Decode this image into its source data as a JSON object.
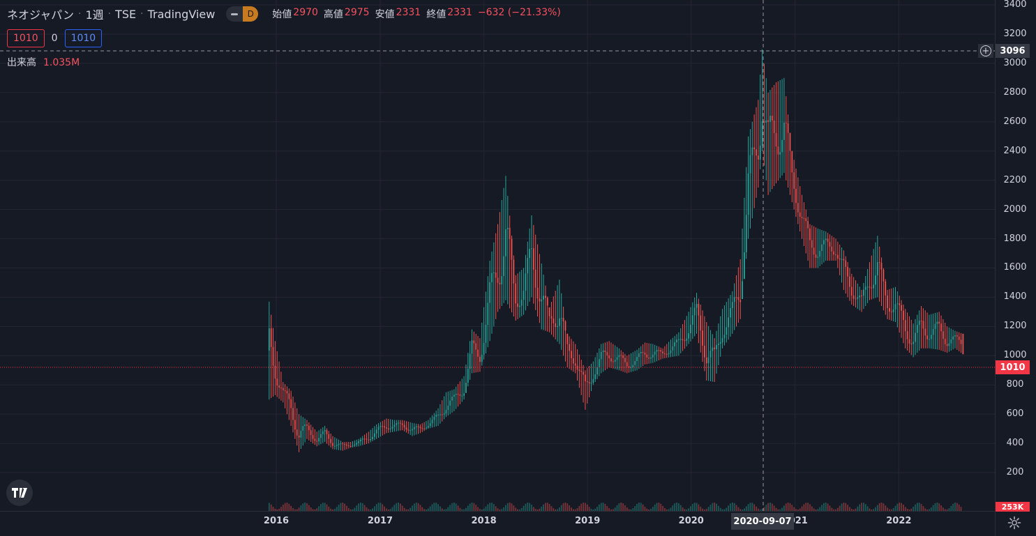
{
  "header": {
    "symbol_name": "ネオジャパン",
    "interval": "1週",
    "exchange": "TSE",
    "source": "TradingView",
    "pill_letter": "D",
    "ohlc": [
      {
        "key": "始値",
        "value": "2970"
      },
      {
        "key": "高値",
        "value": "2975"
      },
      {
        "key": "安値",
        "value": "2331"
      },
      {
        "key": "終値",
        "value": "2331"
      },
      {
        "key": "",
        "value": "−632 (−21.33%)"
      }
    ]
  },
  "row2": {
    "bid": "1010",
    "spread": "0",
    "ask": "1010"
  },
  "volume_legend": {
    "label": "出来高",
    "value": "1.035M"
  },
  "price_axis": {
    "ticks": [
      "3400",
      "3200",
      "3000",
      "2800",
      "2600",
      "2400",
      "2200",
      "2000",
      "1800",
      "1600",
      "1400",
      "1200",
      "1000",
      "800",
      "600",
      "400",
      "200"
    ],
    "current_price": "1010",
    "crosshair_price": "3096",
    "volume_tag": "253K"
  },
  "time_axis": {
    "labels": [
      "2016",
      "2017",
      "2018",
      "2019",
      "2020",
      "2021",
      "2022"
    ],
    "crosshair_date": "2020-09-07"
  },
  "colors": {
    "up": "#26a69a",
    "down": "#ef5350",
    "background": "#161a25",
    "grid": "#242733"
  },
  "icons": {
    "logo": "tradingview-logo-icon",
    "settings": "gear-icon",
    "crosshair_add": "plus-circle-icon"
  },
  "chart_data": {
    "type": "candlestick",
    "interval": "1週",
    "ylim": [
      0,
      3400
    ],
    "yticks": [
      200,
      400,
      600,
      800,
      1000,
      1200,
      1400,
      1600,
      1800,
      2000,
      2200,
      2400,
      2600,
      2800,
      3000,
      3200,
      3400
    ],
    "xticks": [
      "2016",
      "2017",
      "2018",
      "2019",
      "2020",
      "2021",
      "2022"
    ],
    "last_close": 1010,
    "crosshair": {
      "date": "2020-09-07",
      "price": 3096
    },
    "series": [
      {
        "points": [
          [
            "2015-12-07",
            1370,
            700
          ],
          [
            "2015-12-28",
            1100,
            730
          ],
          [
            "2016-01-25",
            820,
            680
          ],
          [
            "2016-02-22",
            760,
            520
          ],
          [
            "2016-03-21",
            600,
            340
          ],
          [
            "2016-04-18",
            560,
            430
          ],
          [
            "2016-05-23",
            480,
            380
          ],
          [
            "2016-06-20",
            520,
            410
          ],
          [
            "2016-07-18",
            450,
            360
          ],
          [
            "2016-08-22",
            410,
            350
          ],
          [
            "2016-09-19",
            410,
            370
          ],
          [
            "2016-10-17",
            430,
            380
          ],
          [
            "2016-11-21",
            480,
            400
          ],
          [
            "2016-12-19",
            530,
            430
          ],
          [
            "2017-01-23",
            570,
            470
          ],
          [
            "2017-02-20",
            560,
            480
          ],
          [
            "2017-03-20",
            560,
            490
          ],
          [
            "2017-04-24",
            540,
            450
          ],
          [
            "2017-05-22",
            530,
            470
          ],
          [
            "2017-06-19",
            560,
            500
          ],
          [
            "2017-07-24",
            640,
            520
          ],
          [
            "2017-08-21",
            750,
            580
          ],
          [
            "2017-09-18",
            770,
            620
          ],
          [
            "2017-10-23",
            860,
            700
          ],
          [
            "2017-11-20",
            1180,
            880
          ],
          [
            "2017-12-18",
            1120,
            890
          ],
          [
            "2018-01-22",
            1650,
            1100
          ],
          [
            "2018-02-19",
            1900,
            1300
          ],
          [
            "2018-03-19",
            2230,
            1380
          ],
          [
            "2018-04-23",
            1550,
            1240
          ],
          [
            "2018-05-21",
            1600,
            1280
          ],
          [
            "2018-06-18",
            1960,
            1400
          ],
          [
            "2018-07-23",
            1630,
            1180
          ],
          [
            "2018-08-20",
            1330,
            1160
          ],
          [
            "2018-09-24",
            1520,
            1080
          ],
          [
            "2018-10-22",
            1150,
            920
          ],
          [
            "2018-11-19",
            1080,
            880
          ],
          [
            "2018-12-24",
            900,
            630
          ],
          [
            "2019-01-21",
            960,
            800
          ],
          [
            "2019-02-18",
            1080,
            880
          ],
          [
            "2019-03-18",
            1100,
            920
          ],
          [
            "2019-04-22",
            1050,
            900
          ],
          [
            "2019-05-20",
            1000,
            880
          ],
          [
            "2019-06-24",
            1040,
            900
          ],
          [
            "2019-07-22",
            1090,
            940
          ],
          [
            "2019-08-19",
            1080,
            950
          ],
          [
            "2019-09-23",
            1050,
            980
          ],
          [
            "2019-10-21",
            1110,
            990
          ],
          [
            "2019-11-18",
            1160,
            1000
          ],
          [
            "2019-12-23",
            1300,
            1080
          ],
          [
            "2020-01-20",
            1430,
            1150
          ],
          [
            "2020-02-24",
            1230,
            830
          ],
          [
            "2020-03-23",
            1120,
            820
          ],
          [
            "2020-04-20",
            1320,
            1050
          ],
          [
            "2020-05-25",
            1440,
            1150
          ],
          [
            "2020-06-22",
            1660,
            1250
          ],
          [
            "2020-07-20",
            2500,
            1800
          ],
          [
            "2020-08-24",
            2750,
            2150
          ],
          [
            "2020-09-07",
            3096,
            2400
          ],
          [
            "2020-09-28",
            2800,
            2100
          ],
          [
            "2020-10-26",
            2870,
            2180
          ],
          [
            "2020-11-23",
            2900,
            2250
          ],
          [
            "2020-12-21",
            2400,
            2050
          ],
          [
            "2021-01-25",
            2100,
            1800
          ],
          [
            "2021-02-22",
            1900,
            1600
          ],
          [
            "2021-03-22",
            1870,
            1600
          ],
          [
            "2021-04-19",
            1850,
            1650
          ],
          [
            "2021-05-24",
            1800,
            1650
          ],
          [
            "2021-06-21",
            1720,
            1450
          ],
          [
            "2021-07-19",
            1560,
            1350
          ],
          [
            "2021-08-23",
            1450,
            1300
          ],
          [
            "2021-09-20",
            1640,
            1380
          ],
          [
            "2021-10-18",
            1820,
            1400
          ],
          [
            "2021-11-22",
            1450,
            1250
          ],
          [
            "2021-12-20",
            1470,
            1230
          ],
          [
            "2022-01-24",
            1320,
            1050
          ],
          [
            "2022-02-21",
            1220,
            990
          ],
          [
            "2022-03-21",
            1340,
            1050
          ],
          [
            "2022-04-18",
            1280,
            1050
          ],
          [
            "2022-05-23",
            1300,
            1040
          ],
          [
            "2022-06-20",
            1200,
            1020
          ],
          [
            "2022-07-18",
            1170,
            1050
          ],
          [
            "2022-08-15",
            1150,
            1010
          ]
        ]
      }
    ]
  }
}
